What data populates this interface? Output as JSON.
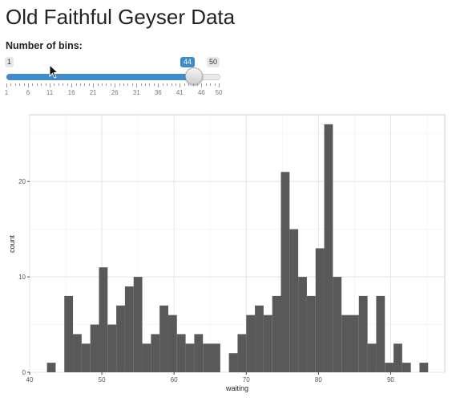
{
  "page": {
    "title": "Old Faithful Geyser Data"
  },
  "slider": {
    "label": "Number of bins:",
    "min": 1,
    "max": 50,
    "value": 44,
    "min_label": "1",
    "max_label": "50",
    "value_label": "44",
    "grid_labels": [
      "1",
      "6",
      "11",
      "16",
      "21",
      "26",
      "31",
      "36",
      "41",
      "46",
      "50"
    ],
    "fill_color": "#428bca"
  },
  "cursor_icon": "arrow-pointer-icon",
  "chart_data": {
    "type": "bar",
    "xlabel": "waiting",
    "ylabel": "count",
    "xlim": [
      40,
      97.5
    ],
    "ylim": [
      0,
      27
    ],
    "x_ticks": [
      40,
      50,
      60,
      70,
      80,
      90
    ],
    "y_ticks": [
      0,
      10,
      20
    ],
    "grid": true,
    "bar_color": "#595959",
    "bin_width": 1.2,
    "bin_start": 42.4,
    "values": [
      1,
      0,
      8,
      4,
      3,
      5,
      11,
      5,
      7,
      9,
      10,
      3,
      4,
      7,
      6,
      4,
      3,
      4,
      3,
      3,
      0,
      2,
      4,
      6,
      7,
      6,
      8,
      21,
      15,
      10,
      8,
      13,
      26,
      10,
      6,
      6,
      8,
      3,
      8,
      1,
      3,
      1,
      0,
      1
    ]
  }
}
